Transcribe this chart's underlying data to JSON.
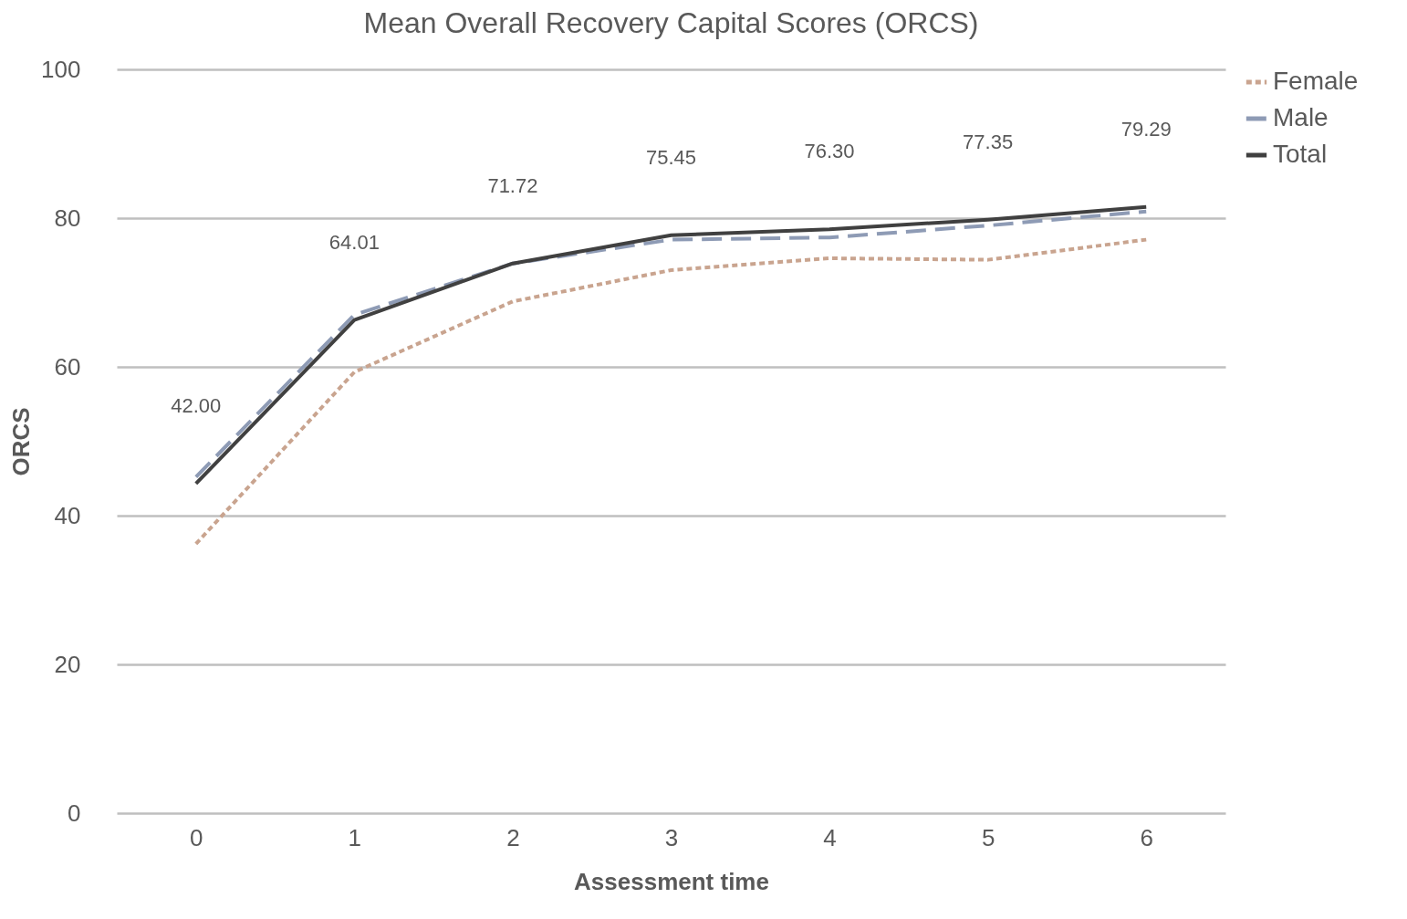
{
  "chart_data": {
    "type": "line",
    "title": "Mean Overall Recovery Capital Scores (ORCS)",
    "xlabel": "Assessment time",
    "ylabel": "ORCS",
    "categories": [
      "0",
      "1",
      "2",
      "3",
      "4",
      "5",
      "6"
    ],
    "series": [
      {
        "name": "Female",
        "color": "#c9a48f",
        "line_style": "dotted",
        "values": [
          36.2,
          59.3,
          68.8,
          73.0,
          74.6,
          74.4,
          77.1
        ]
      },
      {
        "name": "Male",
        "color": "#8e9bb5",
        "line_style": "dashed",
        "values": [
          45.2,
          67.0,
          73.9,
          77.1,
          77.4,
          79.0,
          80.9
        ]
      },
      {
        "name": "Total",
        "color": "#404040",
        "line_style": "solid",
        "values": [
          44.3,
          66.3,
          73.9,
          77.7,
          78.5,
          79.8,
          81.5
        ]
      }
    ],
    "annotations": [
      "42.00",
      "64.01",
      "71.72",
      "75.45",
      "76.30",
      "77.35",
      "79.29"
    ],
    "ylim": [
      0,
      100
    ],
    "yticks": [
      0,
      20,
      40,
      60,
      80,
      100
    ],
    "grid": "y",
    "legend": "right",
    "marker": "none"
  }
}
